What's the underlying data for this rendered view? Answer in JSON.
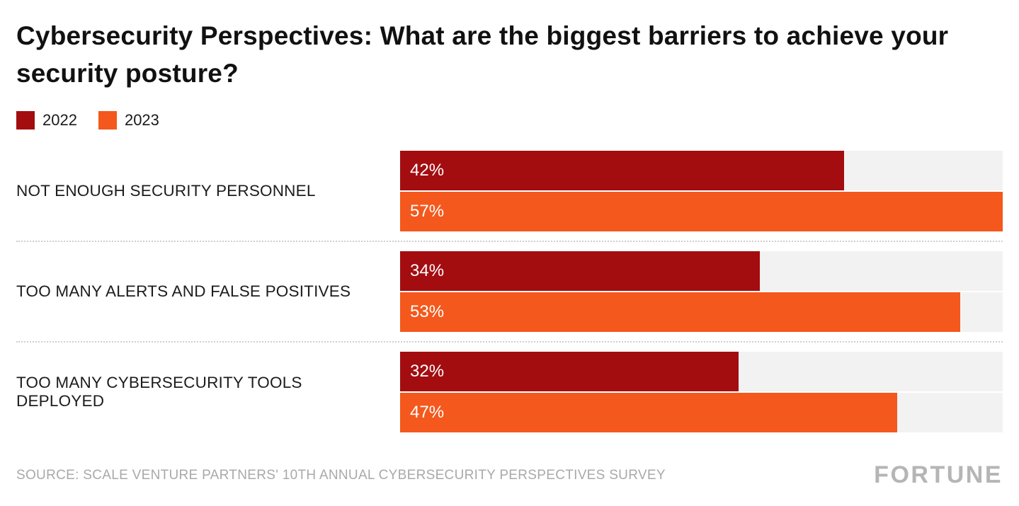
{
  "title": "Cybersecurity Perspectives: What are the biggest barriers to achieve your security posture?",
  "legend": [
    {
      "label": "2022",
      "color": "#a30d10"
    },
    {
      "label": "2023",
      "color": "#f4581c"
    }
  ],
  "source": "SOURCE: SCALE VENTURE PARTNERS' 10TH ANNUAL CYBERSECURITY PERSPECTIVES SURVEY",
  "brand": "FORTUNE",
  "colors": {
    "bar_2022": "#a30d10",
    "bar_2023": "#f4581c",
    "track": "#f2f2f2",
    "separator": "#cfcfcf",
    "source_text": "#a9a9a9",
    "title_text": "#111111"
  },
  "chart_data": {
    "type": "bar",
    "orientation": "horizontal",
    "title": "Cybersecurity Perspectives: What are the biggest barriers to achieve your security posture?",
    "categories": [
      "NOT ENOUGH SECURITY PERSONNEL",
      "TOO MANY ALERTS AND FALSE POSITIVES",
      "TOO MANY CYBERSECURITY TOOLS DEPLOYED"
    ],
    "series": [
      {
        "name": "2022",
        "color": "#a30d10",
        "values": [
          42,
          34,
          32
        ]
      },
      {
        "name": "2023",
        "color": "#f4581c",
        "values": [
          57,
          53,
          47
        ]
      }
    ],
    "value_suffix": "%",
    "xlim": [
      0,
      57
    ],
    "grid": false,
    "legend_position": "top-left",
    "data_labels": "inside-start"
  }
}
